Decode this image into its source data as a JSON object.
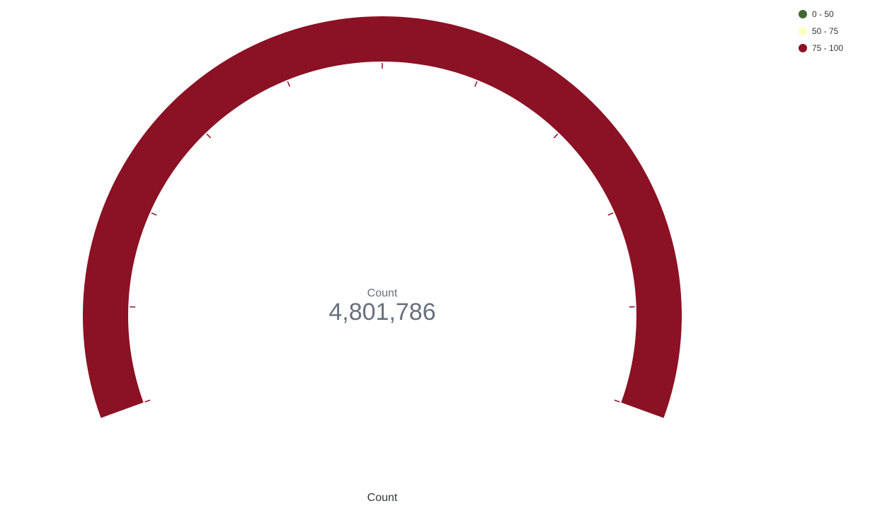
{
  "chart_data": {
    "type": "gauge",
    "metric_label": "Count",
    "value": 4801786,
    "value_display": "4,801,786",
    "range": [
      0,
      100
    ],
    "ranges": [
      {
        "label": "0 - 50",
        "from": 0,
        "to": 50,
        "color": "#3f6833"
      },
      {
        "label": "50 - 75",
        "from": 50,
        "to": 75,
        "color": "#fcffc2"
      },
      {
        "label": "75 - 100",
        "from": 75,
        "to": 100,
        "color": "#8b1124"
      }
    ],
    "tick_count": 11,
    "legend_position": "top-right",
    "xlabel": "Count"
  },
  "colors": {
    "gauge_fill": "#8b1124",
    "text_muted": "#69707d",
    "text_dark": "#343741"
  }
}
